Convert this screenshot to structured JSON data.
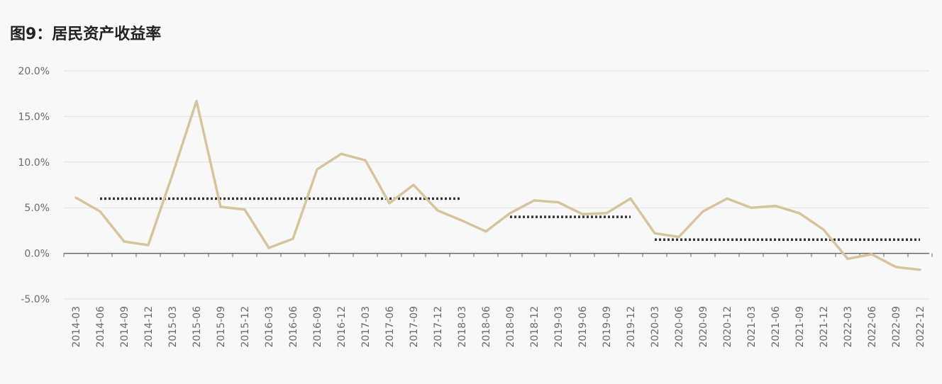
{
  "chart_data": {
    "type": "line",
    "title": "图9：居民资产收益率",
    "xlabel": "",
    "ylabel": "",
    "ylim": [
      -5,
      20
    ],
    "y_ticks": [
      "20.0%",
      "15.0%",
      "10.0%",
      "5.0%",
      "0.0%",
      "-5.0%"
    ],
    "categories": [
      "2014-03",
      "2014-06",
      "2014-09",
      "2014-12",
      "2015-03",
      "2015-06",
      "2015-09",
      "2015-12",
      "2016-03",
      "2016-06",
      "2016-09",
      "2016-12",
      "2017-03",
      "2017-06",
      "2017-09",
      "2017-12",
      "2018-03",
      "2018-06",
      "2018-09",
      "2018-12",
      "2019-03",
      "2019-06",
      "2019-09",
      "2019-12",
      "2020-03",
      "2020-06",
      "2020-09",
      "2020-12",
      "2021-03",
      "2021-06",
      "2021-09",
      "2021-12",
      "2022-03",
      "2022-06",
      "2022-09",
      "2022-12"
    ],
    "series": [
      {
        "values": [
          6.1,
          4.6,
          1.3,
          0.9,
          8.6,
          16.7,
          5.1,
          4.8,
          0.6,
          1.6,
          9.2,
          10.9,
          10.2,
          5.5,
          7.5,
          4.7,
          3.6,
          2.4,
          4.4,
          5.8,
          5.6,
          4.3,
          4.4,
          6.0,
          2.2,
          1.8,
          4.6,
          6.0,
          5.0,
          5.2,
          4.4,
          2.6,
          -0.6,
          -0.1,
          -1.5,
          -1.8
        ],
        "color": "#d6c49d"
      }
    ],
    "reference_lines": [
      {
        "value": 6.0,
        "from": "2014-06",
        "to": "2018-03",
        "style": "dotted",
        "color": "#333333"
      },
      {
        "value": 4.0,
        "from": "2018-09",
        "to": "2019-12",
        "style": "dotted",
        "color": "#333333"
      },
      {
        "value": 1.5,
        "from": "2020-03",
        "to": "2022-12",
        "style": "dotted",
        "color": "#333333"
      }
    ],
    "grid": true,
    "legend": "none"
  }
}
